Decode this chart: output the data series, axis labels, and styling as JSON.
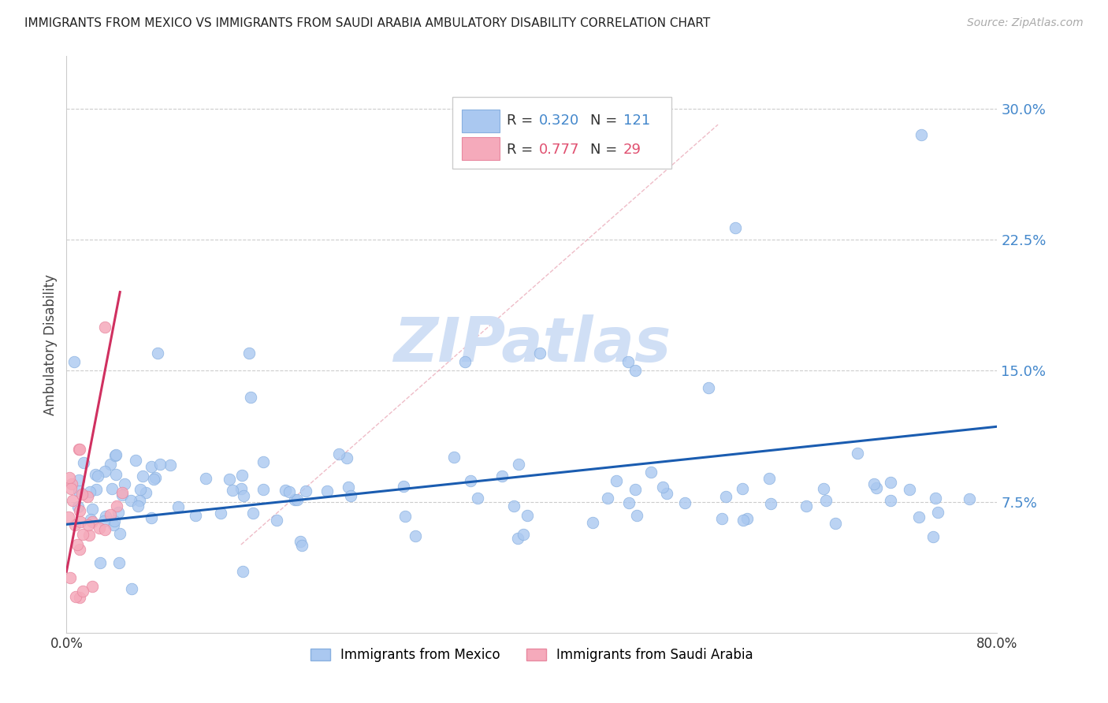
{
  "title": "IMMIGRANTS FROM MEXICO VS IMMIGRANTS FROM SAUDI ARABIA AMBULATORY DISABILITY CORRELATION CHART",
  "source": "Source: ZipAtlas.com",
  "ylabel": "Ambulatory Disability",
  "xlim": [
    0.0,
    0.8
  ],
  "ylim": [
    0.0,
    0.33
  ],
  "yticks": [
    0.075,
    0.15,
    0.225,
    0.3
  ],
  "ytick_labels": [
    "7.5%",
    "15.0%",
    "22.5%",
    "30.0%"
  ],
  "blue_color": "#aac8f0",
  "blue_edge_color": "#88b0e0",
  "pink_color": "#f5aabb",
  "pink_edge_color": "#e888a0",
  "trend_blue_color": "#1a5cb0",
  "trend_pink_color": "#d03060",
  "diagonal_color": "#f0b0c0",
  "watermark_color": "#d0dff5",
  "legend_label_blue": "Immigrants from Mexico",
  "legend_label_pink": "Immigrants from Saudi Arabia",
  "blue_trend_x0": 0.0,
  "blue_trend_y0": 0.062,
  "blue_trend_x1": 0.8,
  "blue_trend_y1": 0.118,
  "pink_trend_x0": 0.0,
  "pink_trend_y0": 0.035,
  "pink_trend_x1": 0.046,
  "pink_trend_y1": 0.195
}
